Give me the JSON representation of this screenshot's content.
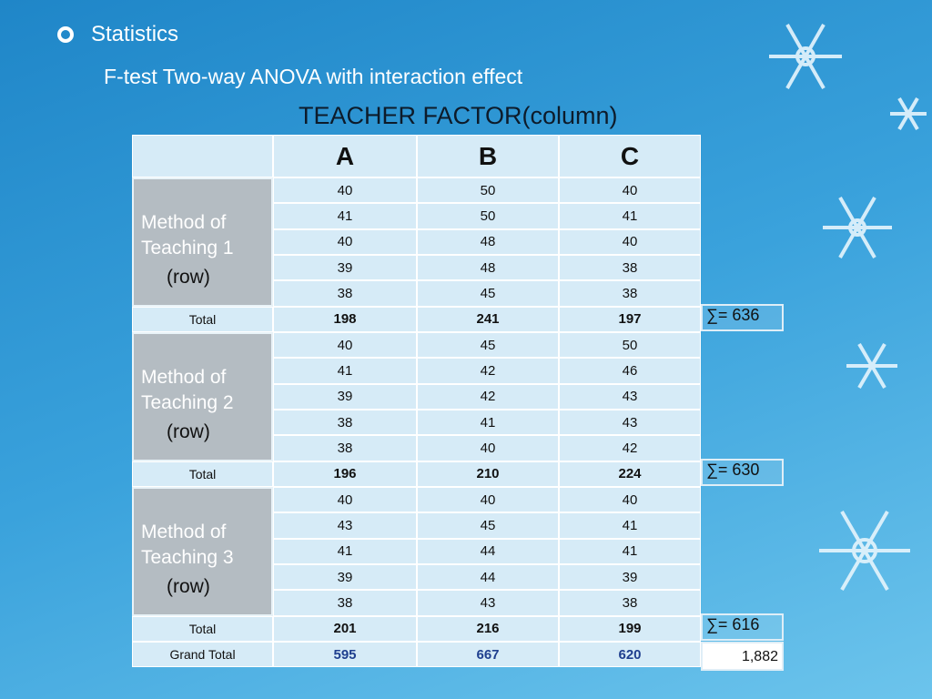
{
  "bullet": "Statistics",
  "subtitle": "F-test Two-way ANOVA with interaction effect",
  "table": {
    "title": "TEACHER FACTOR(column)",
    "columns": [
      "A",
      "B",
      "C"
    ],
    "groups": [
      {
        "label_lines": [
          "Method of",
          "Teaching 1"
        ],
        "row_label": "(row)",
        "rows": [
          [
            40,
            50,
            40
          ],
          [
            41,
            50,
            41
          ],
          [
            40,
            48,
            40
          ],
          [
            39,
            48,
            38
          ],
          [
            38,
            45,
            38
          ]
        ],
        "total_label": "Total",
        "totals": [
          198,
          241,
          197
        ],
        "sum": "∑= 636"
      },
      {
        "label_lines": [
          "Method of",
          "Teaching 2"
        ],
        "row_label": "(row)",
        "rows": [
          [
            40,
            45,
            50
          ],
          [
            41,
            42,
            46
          ],
          [
            39,
            42,
            43
          ],
          [
            38,
            41,
            43
          ],
          [
            38,
            40,
            42
          ]
        ],
        "total_label": "Total",
        "totals": [
          196,
          210,
          224
        ],
        "sum": "∑= 630"
      },
      {
        "label_lines": [
          "Method of",
          "Teaching 3"
        ],
        "row_label": "(row)",
        "rows": [
          [
            40,
            40,
            40
          ],
          [
            43,
            45,
            41
          ],
          [
            41,
            44,
            41
          ],
          [
            39,
            44,
            39
          ],
          [
            38,
            43,
            38
          ]
        ],
        "total_label": "Total",
        "totals": [
          201,
          216,
          199
        ],
        "sum": "∑= 616"
      }
    ],
    "grand_total": {
      "label": "Grand Total",
      "values": [
        595,
        667,
        620
      ],
      "overall": "1,882"
    }
  }
}
